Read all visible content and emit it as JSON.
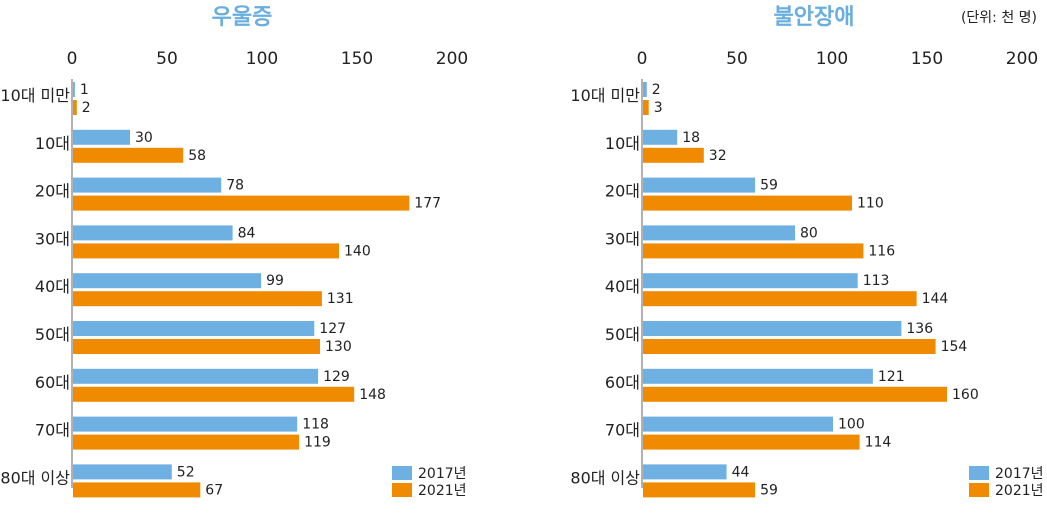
{
  "unit_note": "(단위: 천 명)",
  "colors": {
    "s2017": "#6fb0e3",
    "s2021": "#f08a00",
    "title": "#6aaee0",
    "axis": "#666666"
  },
  "chart_data": [
    {
      "type": "bar",
      "orientation": "horizontal",
      "title": "우울증",
      "categories": [
        "10대 미만",
        "10대",
        "20대",
        "30대",
        "40대",
        "50대",
        "60대",
        "70대",
        "80대 이상"
      ],
      "xticks": [
        "0",
        "50",
        "100",
        "150",
        "200"
      ],
      "xlim": [
        0,
        200
      ],
      "series": [
        {
          "name": "2017년",
          "values": [
            1,
            30,
            78,
            84,
            99,
            127,
            129,
            118,
            52
          ]
        },
        {
          "name": "2021년",
          "values": [
            2,
            58,
            177,
            140,
            131,
            130,
            148,
            119,
            67
          ]
        }
      ],
      "legend": "bottom-right",
      "grid": false
    },
    {
      "type": "bar",
      "orientation": "horizontal",
      "title": "불안장애",
      "categories": [
        "10대 미만",
        "10대",
        "20대",
        "30대",
        "40대",
        "50대",
        "60대",
        "70대",
        "80대 이상"
      ],
      "xticks": [
        "0",
        "50",
        "100",
        "150",
        "200"
      ],
      "xlim": [
        0,
        200
      ],
      "series": [
        {
          "name": "2017년",
          "values": [
            2,
            18,
            59,
            80,
            113,
            136,
            121,
            100,
            44
          ]
        },
        {
          "name": "2021년",
          "values": [
            3,
            32,
            110,
            116,
            144,
            154,
            160,
            114,
            59
          ]
        }
      ],
      "legend": "bottom-right",
      "grid": false
    }
  ]
}
